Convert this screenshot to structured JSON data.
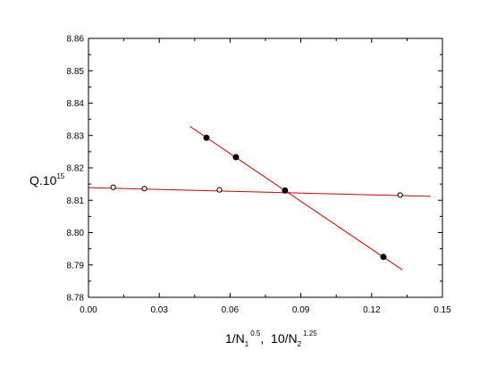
{
  "chart_data": {
    "type": "scatter",
    "title": "",
    "ylabel": {
      "base": "Q.10",
      "exponent": "15"
    },
    "xlabel": {
      "part1_base": "1/N",
      "part1_sub": "1",
      "part1_exp": "0.5",
      "separator": ",  ",
      "part2_base": "10/N",
      "part2_sub": "2",
      "part2_exp": "1.25"
    },
    "xlim": [
      0.0,
      0.15
    ],
    "ylim": [
      8.78,
      8.86
    ],
    "xticks": [
      "0.00",
      "0.03",
      "0.06",
      "0.09",
      "0.12",
      "0.15"
    ],
    "xtick_values": [
      0.0,
      0.03,
      0.06,
      0.09,
      0.12,
      0.15
    ],
    "yticks": [
      "8.78",
      "8.79",
      "8.80",
      "8.81",
      "8.82",
      "8.83",
      "8.84",
      "8.85",
      "8.86"
    ],
    "ytick_values": [
      8.78,
      8.79,
      8.8,
      8.81,
      8.82,
      8.83,
      8.84,
      8.85,
      8.86
    ],
    "grid": false,
    "legend": "none",
    "series": [
      {
        "marker": "filled-circle",
        "color": "#000000",
        "x": [
          0.05,
          0.0625,
          0.0833,
          0.125
        ],
        "y": [
          8.8293,
          8.8233,
          8.813,
          8.7925
        ]
      },
      {
        "marker": "open-circle",
        "color": "#000000",
        "x": [
          0.0105,
          0.0237,
          0.0555,
          0.1321
        ],
        "y": [
          8.814,
          8.8136,
          8.8132,
          8.8116
        ]
      }
    ],
    "fit_lines": [
      {
        "color": "#cc0000",
        "x": [
          0.043,
          0.133
        ],
        "y": [
          8.8328,
          8.7885
        ]
      },
      {
        "color": "#cc0000",
        "x": [
          0.0,
          0.145
        ],
        "y": [
          8.8139,
          8.8112
        ]
      }
    ]
  }
}
